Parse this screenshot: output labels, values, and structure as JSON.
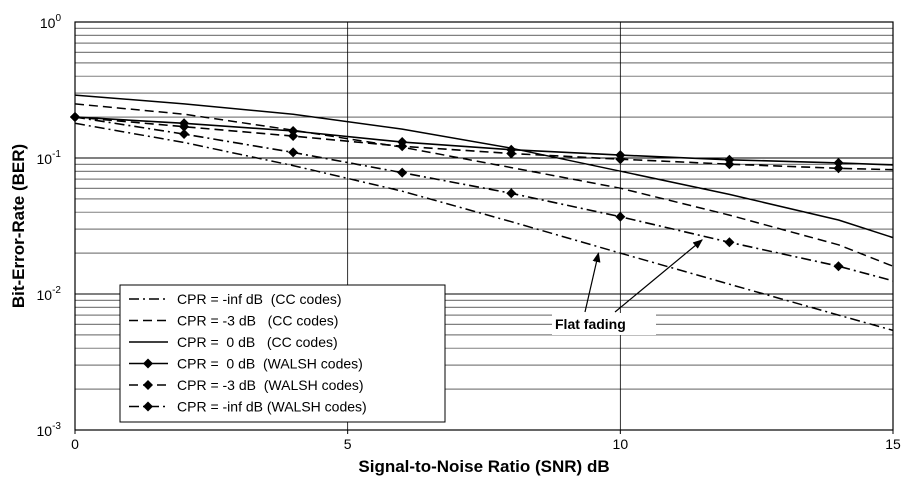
{
  "chart_data": {
    "type": "line",
    "title": "",
    "xlabel": "Signal-to-Noise Ratio (SNR) dB",
    "ylabel": "Bit-Error-Rate (BER)",
    "xlim": [
      0,
      15
    ],
    "ylim": [
      0.001,
      1
    ],
    "yscale": "log",
    "grid": true,
    "legend_position": "bottom-left",
    "x_ticks": [
      "0",
      "5",
      "10",
      "15"
    ],
    "y_ticks": [
      {
        "base": "10",
        "exp": "0",
        "value": 1
      },
      {
        "base": "10",
        "exp": "-1",
        "value": 0.1
      },
      {
        "base": "10",
        "exp": "-2",
        "value": 0.01
      },
      {
        "base": "10",
        "exp": "-3",
        "value": 0.001
      }
    ],
    "series": [
      {
        "name": "CPR = -inf dB  (CC codes)",
        "style": "dashdot",
        "marker": false,
        "x": [
          0,
          2,
          4,
          6,
          8,
          10,
          12,
          14,
          15
        ],
        "y": [
          0.18,
          0.13,
          0.088,
          0.057,
          0.034,
          0.02,
          0.0118,
          0.007,
          0.0054
        ]
      },
      {
        "name": "CPR = -3 dB   (CC codes)",
        "style": "dashed",
        "marker": false,
        "x": [
          0,
          2,
          4,
          6,
          8,
          10,
          12,
          14,
          15
        ],
        "y": [
          0.25,
          0.21,
          0.16,
          0.12,
          0.085,
          0.06,
          0.038,
          0.023,
          0.016
        ]
      },
      {
        "name": "CPR =  0 dB   (CC codes)",
        "style": "solid",
        "marker": false,
        "x": [
          0,
          2,
          4,
          6,
          8,
          10,
          12,
          14,
          15
        ],
        "y": [
          0.29,
          0.25,
          0.21,
          0.163,
          0.118,
          0.08,
          0.054,
          0.035,
          0.026
        ]
      },
      {
        "name": "CPR =  0 dB  (WALSH codes)",
        "style": "solid",
        "marker": true,
        "x": [
          0,
          2,
          4,
          6,
          8,
          10,
          12,
          14,
          15
        ],
        "y": [
          0.2,
          0.18,
          0.158,
          0.131,
          0.115,
          0.105,
          0.097,
          0.092,
          0.089
        ]
      },
      {
        "name": "CPR = -3 dB  (WALSH codes)",
        "style": "dashed",
        "marker": true,
        "x": [
          0,
          2,
          4,
          6,
          8,
          10,
          12,
          14,
          15
        ],
        "y": [
          0.2,
          0.17,
          0.145,
          0.122,
          0.108,
          0.098,
          0.09,
          0.084,
          0.082
        ]
      },
      {
        "name": "CPR = -inf dB (WALSH codes)",
        "style": "dashdot",
        "marker": true,
        "x": [
          0,
          2,
          4,
          6,
          8,
          10,
          12,
          14,
          15
        ],
        "y": [
          0.2,
          0.15,
          0.11,
          0.078,
          0.055,
          0.037,
          0.024,
          0.016,
          0.0125
        ]
      }
    ],
    "annotations": [
      {
        "text": "Flat fading",
        "arrows_to": [
          {
            "x": 9.6,
            "y": 0.02
          },
          {
            "x": 11.5,
            "y": 0.025
          }
        ]
      }
    ]
  }
}
